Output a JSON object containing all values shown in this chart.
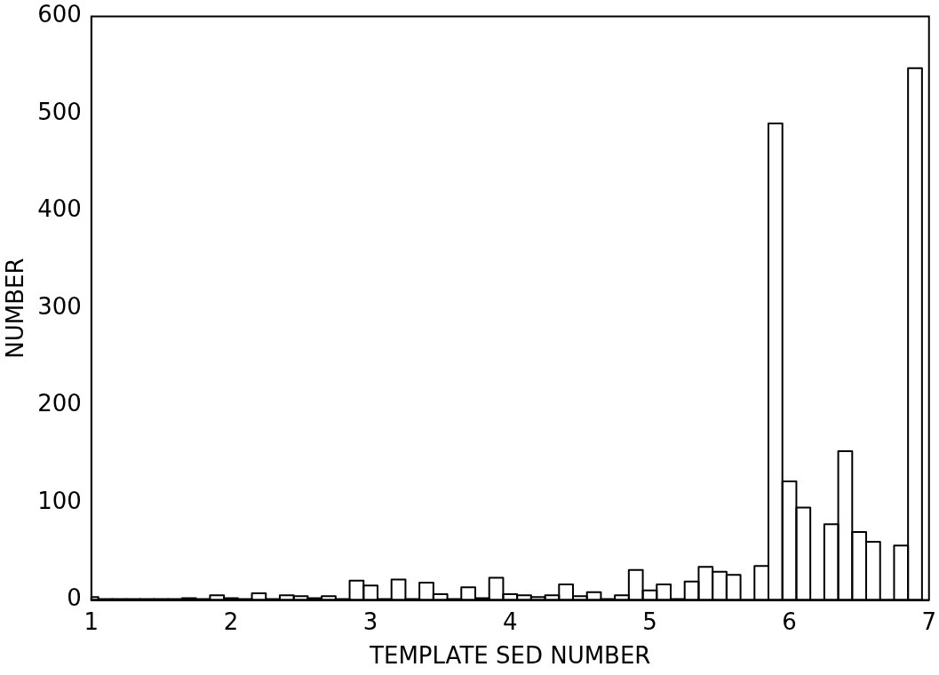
{
  "chart_data": {
    "type": "histogram",
    "xlabel": "TEMPLATE SED NUMBER",
    "ylabel": "NUMBER",
    "color": "#000000",
    "bins": [
      1,
      1.05,
      1.15,
      1.25,
      1.35,
      1.45,
      1.55,
      1.65,
      1.75,
      1.85,
      1.95,
      2.05,
      2.15,
      2.25,
      2.35,
      2.45,
      2.55,
      2.65,
      2.75,
      2.85,
      2.95,
      3.05,
      3.15,
      3.25,
      3.35,
      3.45,
      3.55,
      3.65,
      3.75,
      3.85,
      3.95,
      4.05,
      4.15,
      4.25,
      4.35,
      4.45,
      4.55,
      4.65,
      4.75,
      4.85,
      4.95,
      5.05,
      5.15,
      5.25,
      5.35,
      5.45,
      5.55,
      5.65,
      5.75,
      5.85,
      5.95,
      6.05,
      6.15,
      6.25,
      6.35,
      6.45,
      6.55,
      6.65,
      6.75,
      6.85,
      6.95
    ],
    "values": [
      3,
      1,
      1,
      1,
      1,
      1,
      1,
      2,
      1,
      5,
      2,
      1,
      7,
      1,
      5,
      4,
      2,
      4,
      1,
      20,
      15,
      1,
      21,
      1,
      18,
      6,
      1,
      13,
      2,
      23,
      6,
      5,
      3,
      5,
      16,
      4,
      8,
      1,
      5,
      31,
      10,
      16,
      1,
      19,
      34,
      29,
      26,
      0,
      35,
      490,
      122,
      95,
      0,
      78,
      153,
      70,
      60,
      0,
      56,
      547
    ],
    "xlim": [
      1,
      7
    ],
    "xticks": [
      1,
      2,
      3,
      4,
      5,
      6,
      7
    ],
    "ylim": [
      0,
      600
    ],
    "yticks": [
      0,
      100,
      200,
      300,
      400,
      500,
      600
    ]
  }
}
